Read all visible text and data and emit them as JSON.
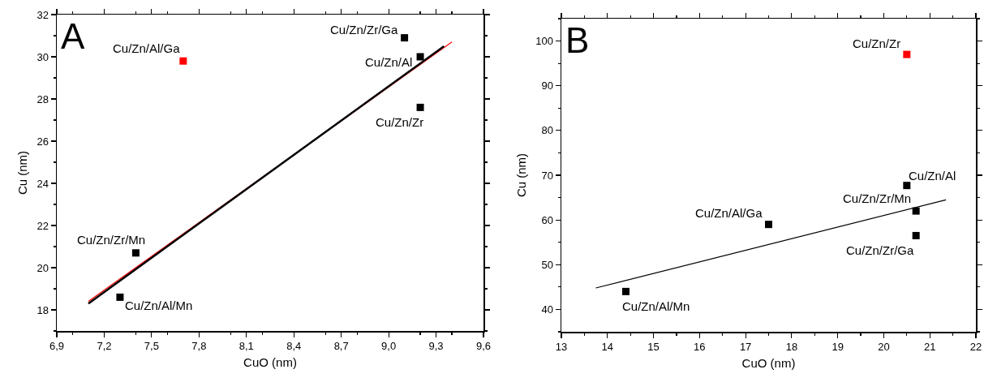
{
  "chart_data": [
    {
      "type": "scatter",
      "xlabel": "CuO (nm)",
      "ylabel": "Cu (nm)",
      "line_style": "solid",
      "xlim": [
        6.9,
        9.6
      ],
      "xticks": [
        {
          "value": 6.9,
          "label": "6,9"
        },
        {
          "value": 7.2,
          "label": "7,2"
        },
        {
          "value": 7.5,
          "label": "7,5"
        },
        {
          "value": 7.8,
          "label": "7,8"
        },
        {
          "value": 8.1,
          "label": "8,1"
        },
        {
          "value": 8.4,
          "label": "8,4"
        },
        {
          "value": 8.7,
          "label": "8,7"
        },
        {
          "value": 9.0,
          "label": "9,0"
        },
        {
          "value": 9.3,
          "label": "9,3"
        },
        {
          "value": 9.6,
          "label": "9,6"
        }
      ],
      "ylim": [
        17,
        32
      ],
      "yticks": [
        18,
        20,
        22,
        24,
        26,
        28,
        30,
        32
      ],
      "series": [
        {
          "marker": "square",
          "x": [
            9.1,
            9.2,
            9.2,
            7.7,
            7.4,
            7.3
          ],
          "values": [
            30.9,
            30.0,
            27.6,
            29.8,
            20.7,
            18.6
          ],
          "colors": [
            "#000000",
            "#000000",
            "#000000",
            "#ff0000",
            "#000000",
            "#000000"
          ]
        },
        {
          "type": "line",
          "x": [
            7.1,
            9.4
          ],
          "values": [
            18.4,
            30.7
          ],
          "color": "#ff0000"
        },
        {
          "type": "line",
          "x": [
            7.1,
            9.35
          ],
          "values": [
            18.3,
            30.5
          ],
          "color": "#000000"
        }
      ],
      "annotations": [
        "A",
        {
          "text": "Cu/Zn/Zr/Ga",
          "x": 9.1,
          "y": 30.9
        },
        {
          "text": "Cu/Zn/Al",
          "x": 9.2,
          "y": 30.0
        },
        {
          "text": "Cu/Zn/Zr",
          "x": 9.2,
          "y": 27.6
        },
        {
          "text": "Cu/Zn/Al/Ga",
          "x": 7.7,
          "y": 29.8
        },
        {
          "text": "Cu/Zn/Zr/Mn",
          "x": 7.4,
          "y": 20.7
        },
        {
          "text": "Cu/Zn/Al/Mn",
          "x": 7.3,
          "y": 18.6
        }
      ]
    },
    {
      "type": "scatter",
      "xlabel": "CuO (nm)",
      "ylabel": "Cu (nm)",
      "line_style": "solid",
      "xlim": [
        13,
        22
      ],
      "xticks": [
        13,
        14,
        15,
        16,
        17,
        18,
        19,
        20,
        21,
        22
      ],
      "ylim": [
        35,
        105
      ],
      "yticks": [
        40,
        50,
        60,
        70,
        80,
        90,
        100
      ],
      "series": [
        {
          "marker": "square",
          "x": [
            20.5,
            20.5,
            20.7,
            20.7,
            17.5,
            14.4
          ],
          "values": [
            97,
            67.7,
            62,
            56.5,
            59,
            44
          ],
          "colors": [
            "#ff0000",
            "#000000",
            "#000000",
            "#000000",
            "#000000",
            "#000000"
          ]
        },
        {
          "type": "line",
          "x": [
            13.75,
            21.35
          ],
          "values": [
            44.8,
            64.5
          ],
          "color": "#000000"
        }
      ],
      "annotations": [
        "B",
        {
          "text": "Cu/Zn/Zr",
          "x": 20.5,
          "y": 97
        },
        {
          "text": "Cu/Zn/Al",
          "x": 20.5,
          "y": 67.7
        },
        {
          "text": "Cu/Zn/Zr/Mn",
          "x": 20.7,
          "y": 62
        },
        {
          "text": "Cu/Zn/Zr/Ga",
          "x": 20.7,
          "y": 56.5
        },
        {
          "text": "Cu/Zn/Al/Ga",
          "x": 17.5,
          "y": 59
        },
        {
          "text": "Cu/Zn/Al/Mn",
          "x": 14.4,
          "y": 44
        }
      ]
    }
  ]
}
